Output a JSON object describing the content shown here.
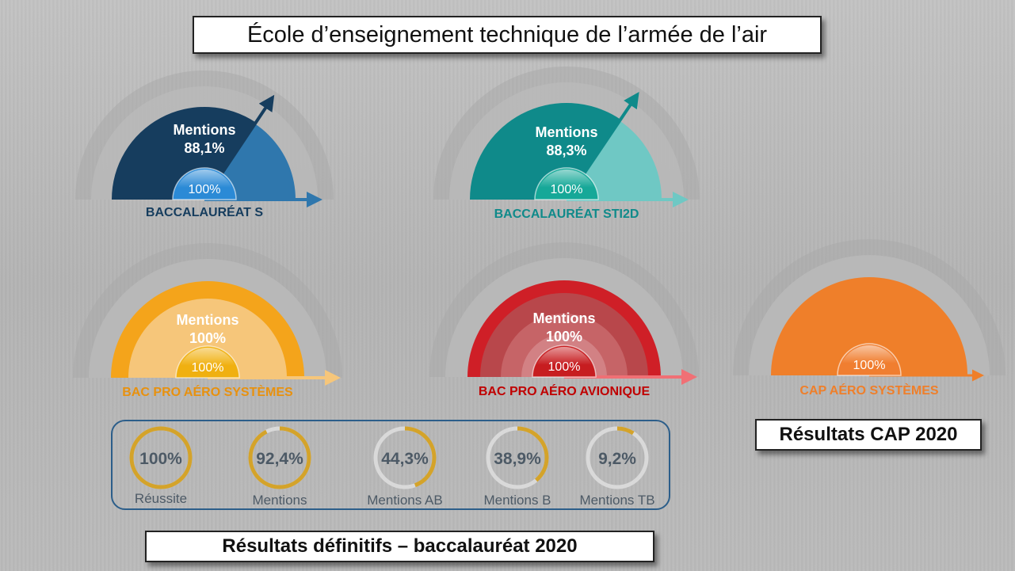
{
  "header": {
    "title": "École d’enseignement technique de l’armée de l’air"
  },
  "footer": {
    "bac_title": "Résultats définitifs – baccalauréat 2020",
    "cap_title": "Résultats CAP 2020"
  },
  "colors": {
    "bac_s": "#163d5e",
    "bac_s_light": "#2f77ad",
    "bac_s_badge": "#2b8ad6",
    "bac_sti2d": "#0f8a8a",
    "bac_sti2d_light": "#6fc8c4",
    "bac_sti2d_badge": "#16a898",
    "bac_pro_as": "#f4a41b",
    "bac_pro_as_light": "#f6c67a",
    "bac_pro_as_badge": "#f0b010",
    "bac_pro_av": "#cf1f27",
    "bac_pro_av_light": "#e08a8c",
    "bac_pro_av_badge": "#c71d20",
    "cap": "#ef7f2a",
    "cap_badge": "#f07e30",
    "ring": "#d4a32a",
    "ring_track": "#d9d9d9",
    "stats_border": "#2c5e8a",
    "stats_text": "#4d5a66"
  },
  "chart_data": [
    {
      "type": "gauge",
      "name": "BACCALAURÉAT S",
      "label": "Mentions",
      "value_label": "88,1%",
      "value": 88.1,
      "success_label": "100%",
      "success": 100,
      "color_key": "bac_s"
    },
    {
      "type": "gauge",
      "name": "BACCALAURÉAT STI2D",
      "label": "Mentions",
      "value_label": "88,3%",
      "value": 88.3,
      "success_label": "100%",
      "success": 100,
      "color_key": "bac_sti2d"
    },
    {
      "type": "gauge",
      "name": "BAC PRO AÉRO SYSTÈMES",
      "label": "Mentions",
      "value_label": "100%",
      "value": 100,
      "success_label": "100%",
      "success": 100,
      "color_key": "bac_pro_as"
    },
    {
      "type": "gauge",
      "name": "BAC PRO AÉRO AVIONIQUE",
      "label": "Mentions",
      "value_label": "100%",
      "value": 100,
      "success_label": "100%",
      "success": 100,
      "color_key": "bac_pro_av"
    },
    {
      "type": "gauge",
      "name": "CAP AÉRO SYSTÈMES",
      "label": "",
      "value_label": "",
      "value": 100,
      "success_label": "100%",
      "success": 100,
      "color_key": "cap"
    },
    {
      "type": "donut",
      "items": [
        {
          "label": "Réussite",
          "value_label": "100%",
          "value": 100
        },
        {
          "label": "Mentions",
          "value_label": "92,4%",
          "value": 92.4
        },
        {
          "label": "Mentions AB",
          "value_label": "44,3%",
          "value": 44.3
        },
        {
          "label": "Mentions B",
          "value_label": "38,9%",
          "value": 38.9
        },
        {
          "label": "Mentions TB",
          "value_label": "9,2%",
          "value": 9.2
        }
      ]
    }
  ]
}
